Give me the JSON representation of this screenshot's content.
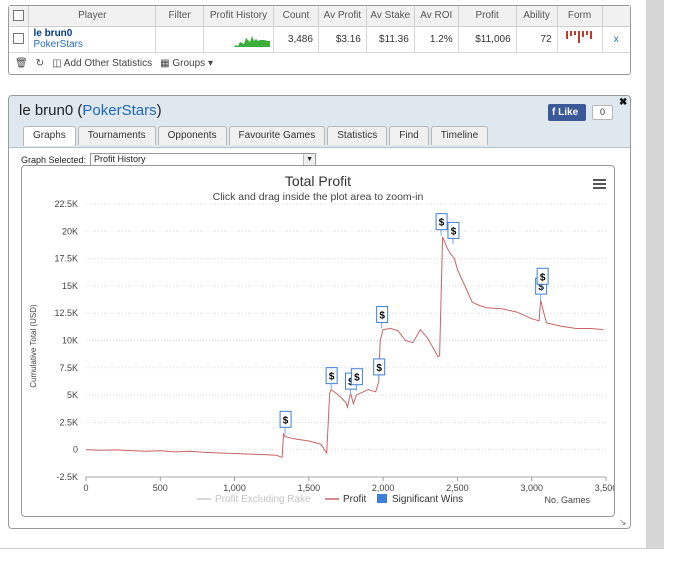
{
  "stats": {
    "headers": [
      "Player",
      "Filter",
      "Profit History",
      "Count",
      "Av Profit",
      "Av Stake",
      "Av ROI",
      "Profit",
      "Ability",
      "Form"
    ],
    "row": {
      "player_name": "le brun0",
      "site": "PokerStars",
      "count": "3,486",
      "av_profit": "$3.16",
      "av_stake": "$11.36",
      "av_roi": "1.2%",
      "profit": "$11,006",
      "ability": "72",
      "remove": "x"
    },
    "toolbar": {
      "add_stats": "Add Other Statistics",
      "groups": "Groups"
    }
  },
  "panel": {
    "title": "le brun0",
    "title_site": "PokerStars",
    "like": "Like",
    "like_count": "0",
    "tabs": [
      "Graphs",
      "Tournaments",
      "Opponents",
      "Favourite Games",
      "Statistics",
      "Find",
      "Timeline"
    ],
    "graph_selected_label": "Graph Selected:",
    "graph_selected_value": "Profit History"
  },
  "colors": {
    "profit_line": "#c86464",
    "rake_line": "#cccccc",
    "sig_wins": "#3d7fd8",
    "fb_blue": "#3b5998",
    "spark_green": "#3cae3c",
    "form_red": "#c0392b"
  },
  "chart_data": {
    "type": "line",
    "title": "Total Profit",
    "subtitle": "Click and drag inside the plot area to zoom-in",
    "ylabel": "Cumulative Total (USD)",
    "xlabel": "No. Games",
    "xlim": [
      0,
      3500
    ],
    "ylim": [
      -2500,
      22500
    ],
    "x_ticks": [
      0,
      500,
      1000,
      1500,
      2000,
      2500,
      3000,
      3500
    ],
    "x_tick_labels": [
      "0",
      "500",
      "1,000",
      "1,500",
      "2,000",
      "2,500",
      "3,000",
      "3,500"
    ],
    "y_ticks": [
      -2500,
      0,
      2500,
      5000,
      7500,
      10000,
      12500,
      15000,
      17500,
      20000,
      22500
    ],
    "y_tick_labels": [
      "-2.5K",
      "0",
      "2.5K",
      "5K",
      "7.5K",
      "10K",
      "12.5K",
      "15K",
      "17.5K",
      "20K",
      "22.5K"
    ],
    "grid": true,
    "legend_position": "bottom",
    "series": [
      {
        "name": "Profit Excluding Rake",
        "visible": false,
        "x": [],
        "y": []
      },
      {
        "name": "Profit",
        "x": [
          0,
          100,
          200,
          300,
          400,
          500,
          600,
          700,
          800,
          900,
          1000,
          1100,
          1200,
          1280,
          1320,
          1330,
          1340,
          1400,
          1500,
          1580,
          1620,
          1640,
          1650,
          1700,
          1750,
          1760,
          1780,
          1800,
          1820,
          1850,
          1900,
          1950,
          1970,
          1980,
          2000,
          2050,
          2100,
          2150,
          2200,
          2250,
          2300,
          2350,
          2370,
          2380,
          2400,
          2430,
          2450,
          2480,
          2500,
          2550,
          2600,
          2650,
          2700,
          2800,
          2900,
          3000,
          3050,
          3060,
          3080,
          3100,
          3200,
          3300,
          3400,
          3480
        ],
        "y": [
          0,
          -50,
          -20,
          -80,
          -150,
          -100,
          -200,
          -150,
          -250,
          -300,
          -350,
          -400,
          -450,
          -500,
          -700,
          1500,
          1200,
          1000,
          800,
          500,
          -300,
          5200,
          5500,
          5000,
          4300,
          3900,
          5200,
          4200,
          5000,
          5200,
          5500,
          5300,
          6200,
          10000,
          11000,
          11100,
          10900,
          10000,
          9800,
          11000,
          10200,
          9000,
          8500,
          8600,
          19500,
          18500,
          18000,
          17500,
          16500,
          15000,
          13500,
          13200,
          13000,
          12900,
          12600,
          12000,
          11800,
          13700,
          12600,
          11600,
          11300,
          11100,
          11100,
          11000
        ]
      },
      {
        "name": "Significant Wins",
        "type": "flags",
        "x": [
          1340,
          1650,
          1780,
          1820,
          1970,
          1990,
          2390,
          2470,
          3060,
          3070
        ],
        "y": [
          1500,
          5500,
          5000,
          5400,
          6300,
          11100,
          19600,
          18800,
          13700,
          14600
        ],
        "label": "$"
      }
    ]
  }
}
